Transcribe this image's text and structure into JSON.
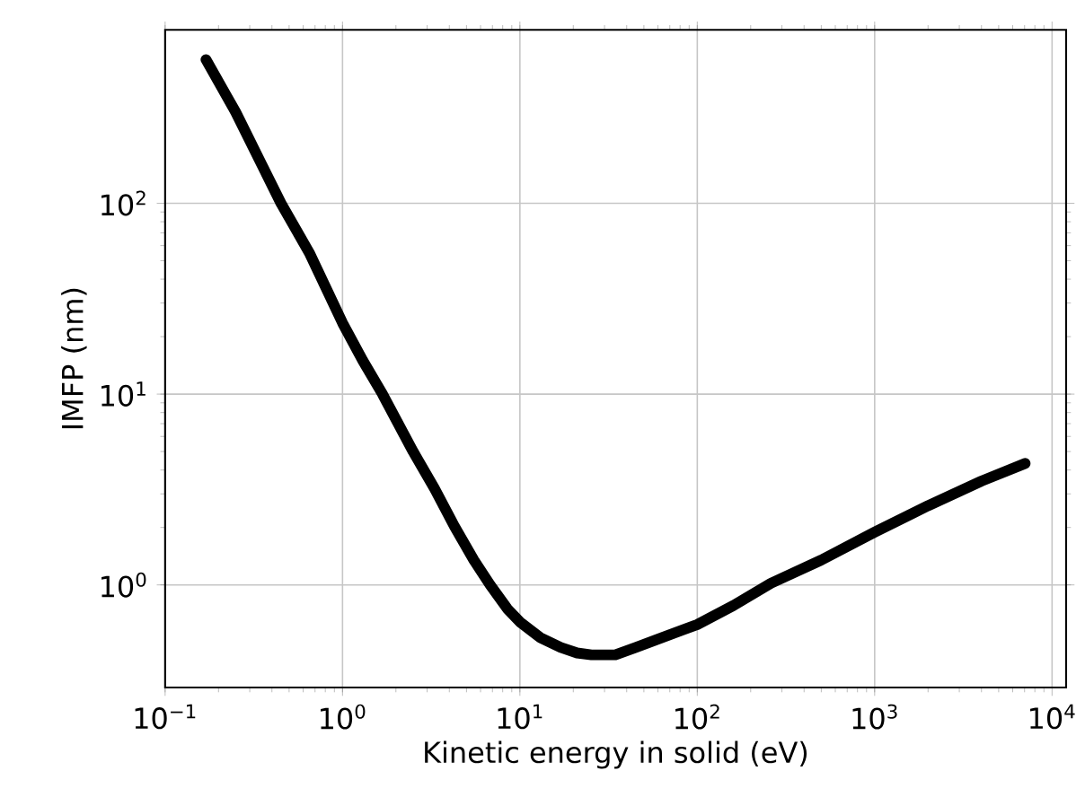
{
  "chart_data": {
    "type": "line",
    "xlabel": "Kinetic energy in solid (eV)",
    "ylabel": "IMFP (nm)",
    "log": "xy",
    "grid": true,
    "marker": "none",
    "line_style": "solid",
    "xlim": [
      0.1,
      12000
    ],
    "ylim": [
      0.29,
      810
    ],
    "xticks": [
      {
        "value": 0.1,
        "label": "10$^{−1}$"
      },
      {
        "value": 1,
        "label": "10$^{0}$"
      },
      {
        "value": 10,
        "label": "10$^{1}$"
      },
      {
        "value": 100,
        "label": "10$^{2}$"
      },
      {
        "value": 1000,
        "label": "10$^{3}$"
      },
      {
        "value": 10000,
        "label": "10$^{4}$"
      }
    ],
    "yticks": [
      {
        "value": 1,
        "label": "10$^{0}$"
      },
      {
        "value": 10,
        "label": "10$^{1}$"
      },
      {
        "value": 100,
        "label": "10$^{2}$"
      }
    ],
    "series": [
      {
        "color": "#000000",
        "x": [
          0.17,
          0.25,
          0.35,
          0.45,
          0.65,
          1.0,
          1.3,
          1.68,
          2.5,
          3.3,
          4.27,
          5.5,
          6.8,
          8.5,
          10,
          13,
          17,
          21,
          25.3,
          34.5,
          45,
          60,
          100,
          160,
          260,
          500,
          1000,
          2000,
          4000,
          7050
        ],
        "values": [
          566,
          300,
          160,
          100,
          55,
          23.6,
          15,
          10,
          5.0,
          3.2,
          2.03,
          1.35,
          1.0,
          0.75,
          0.64,
          0.53,
          0.47,
          0.44,
          0.43,
          0.43,
          0.47,
          0.52,
          0.62,
          0.78,
          1.02,
          1.35,
          1.89,
          2.6,
          3.5,
          4.33
        ]
      }
    ]
  }
}
